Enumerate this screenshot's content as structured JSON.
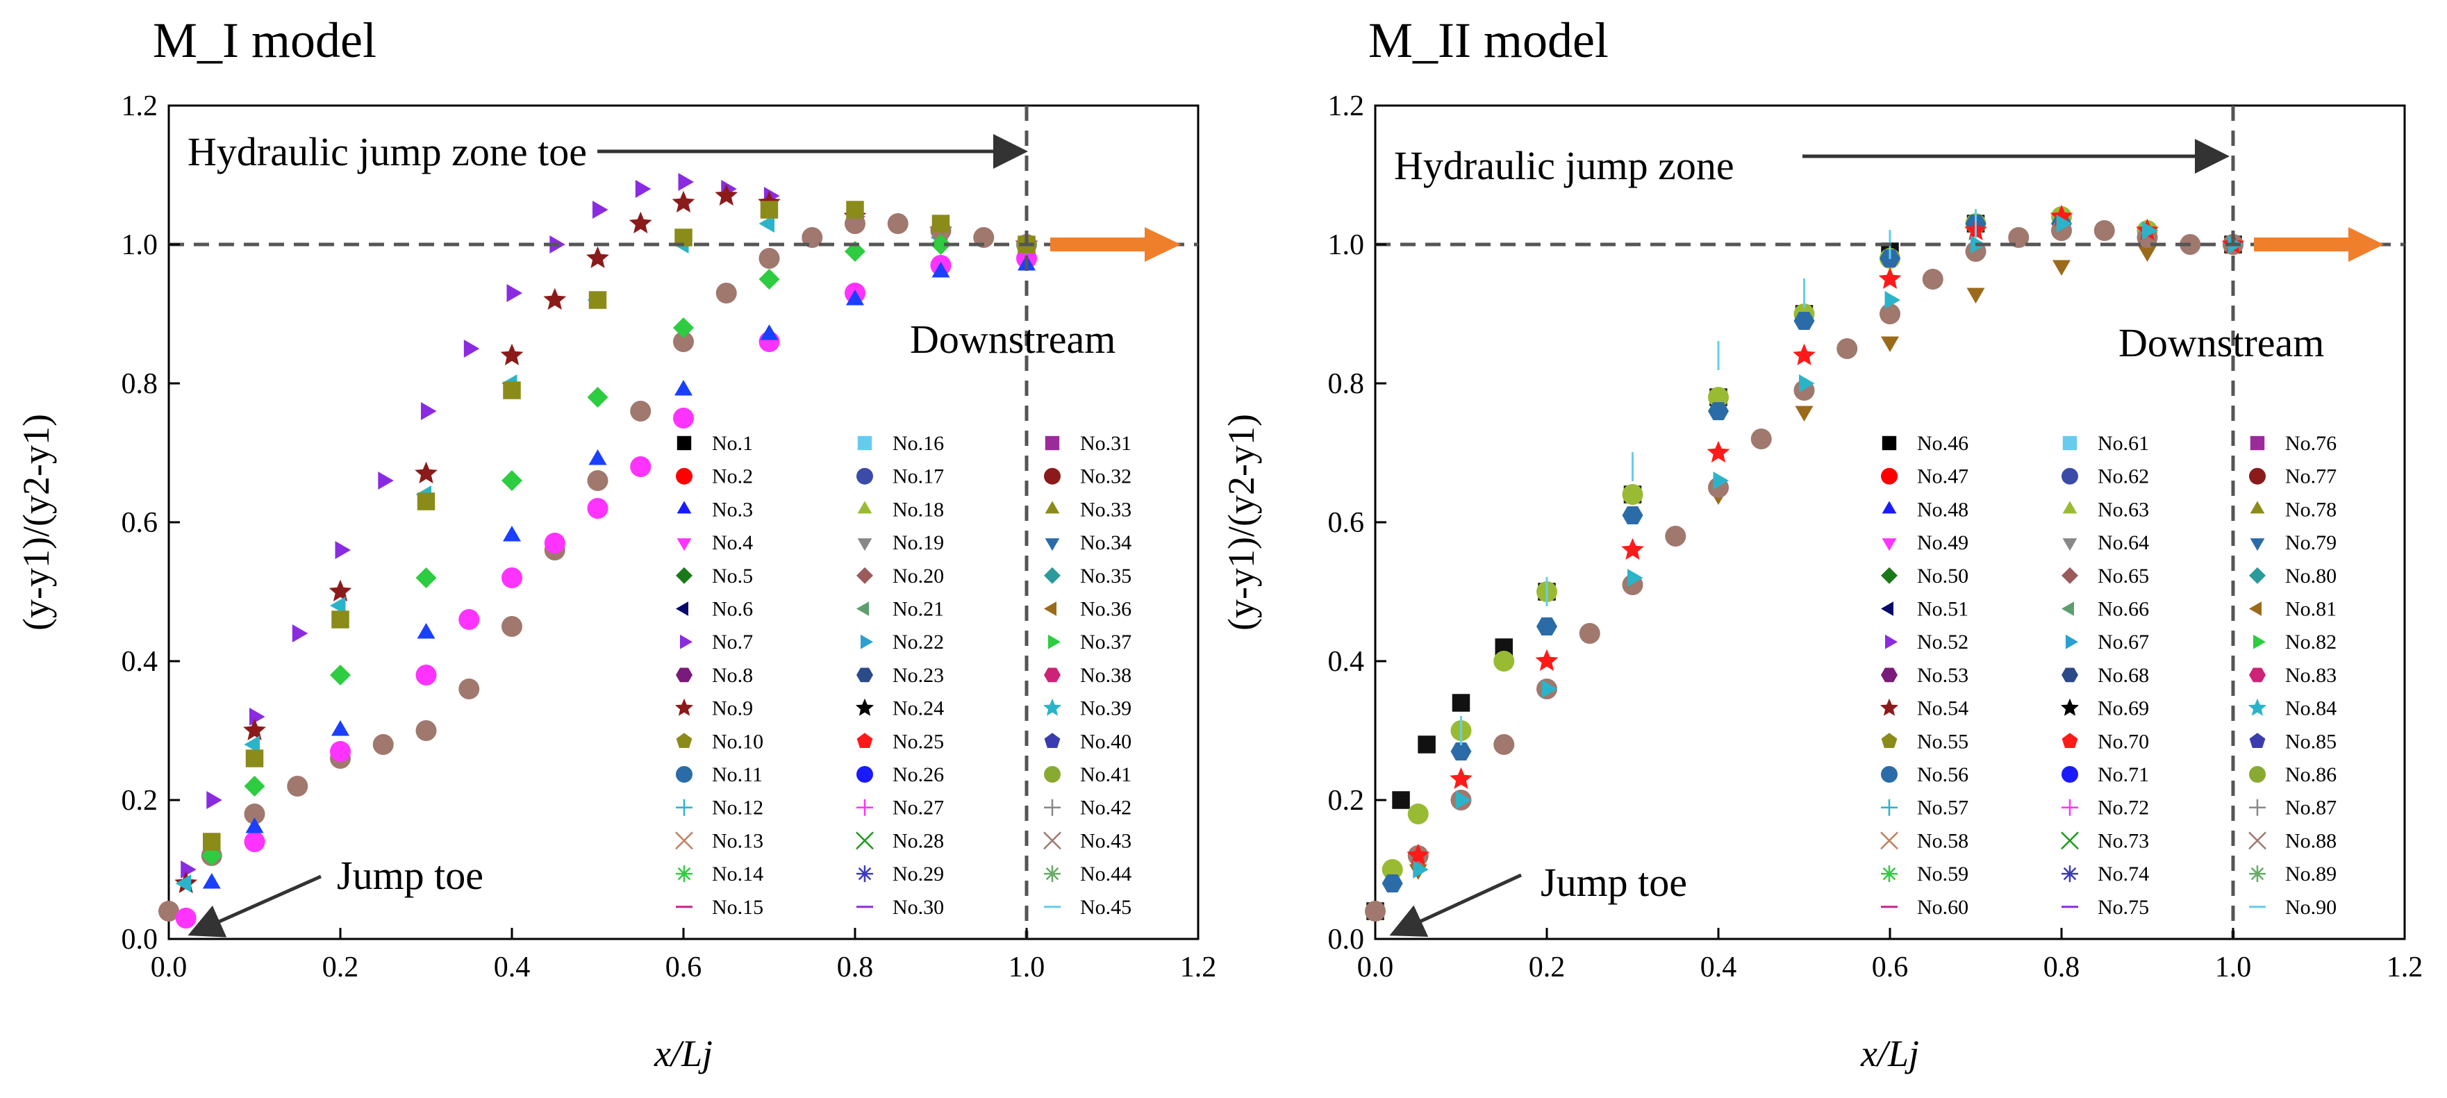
{
  "figure": {
    "colors": {
      "axis": "#000000",
      "dashed": "#555555",
      "arrow": "#333333",
      "downstream_arrow": "#f07f2c",
      "background": "#ffffff"
    }
  },
  "chart_data": [
    {
      "type": "scatter",
      "title": "M_I model",
      "xlabel": "x/Lj",
      "ylabel": "(y-y1)/(y2-y1)",
      "xlim": [
        0.0,
        1.2
      ],
      "ylim": [
        0.0,
        1.2
      ],
      "x_ticks": [
        "0.0",
        "0.2",
        "0.4",
        "0.6",
        "0.8",
        "1.0",
        "1.2"
      ],
      "y_ticks": [
        "0.0",
        "0.2",
        "0.4",
        "0.6",
        "0.8",
        "1.0",
        "1.2"
      ],
      "reference_lines": {
        "y": 1.0,
        "x": 1.0
      },
      "annotations": {
        "zone": "Hydraulic jump zone toe",
        "jump_toe": "Jump toe",
        "downstream": "Downstream"
      },
      "legend_columns": [
        [
          "No.1",
          "No.2",
          "No.3",
          "No.4",
          "No.5",
          "No.6",
          "No.7",
          "No.8",
          "No.9",
          "No.10",
          "No.11",
          "No.12",
          "No.13",
          "No.14",
          "No.15"
        ],
        [
          "No.16",
          "No.17",
          "No.18",
          "No.19",
          "No.20",
          "No.21",
          "No.22",
          "No.23",
          "No.24",
          "No.25",
          "No.26",
          "No.27",
          "No.28",
          "No.29",
          "No.30"
        ],
        [
          "No.31",
          "No.32",
          "No.33",
          "No.34",
          "No.35",
          "No.36",
          "No.37",
          "No.38",
          "No.39",
          "No.40",
          "No.41",
          "No.42",
          "No.43",
          "No.44",
          "No.45"
        ]
      ],
      "series_count": 45,
      "representative_series": [
        {
          "name": "No.7",
          "marker": "triangle-right",
          "color": "#8a2be2",
          "x": [
            0.02,
            0.05,
            0.1,
            0.15,
            0.2,
            0.25,
            0.3,
            0.35,
            0.4,
            0.45,
            0.5,
            0.55,
            0.6,
            0.65,
            0.7,
            0.8,
            0.9,
            1.0
          ],
          "y": [
            0.1,
            0.2,
            0.32,
            0.44,
            0.56,
            0.66,
            0.76,
            0.85,
            0.93,
            1.0,
            1.05,
            1.08,
            1.09,
            1.08,
            1.07,
            1.04,
            1.02,
            1.0
          ]
        },
        {
          "name": "No.9",
          "marker": "star",
          "color": "#8b1a1a",
          "x": [
            0.02,
            0.1,
            0.2,
            0.3,
            0.4,
            0.45,
            0.5,
            0.55,
            0.6,
            0.65,
            0.7,
            0.8,
            0.9,
            1.0
          ],
          "y": [
            0.08,
            0.3,
            0.5,
            0.67,
            0.84,
            0.92,
            0.98,
            1.03,
            1.06,
            1.07,
            1.06,
            1.04,
            1.02,
            1.0
          ]
        },
        {
          "name": "No.22",
          "marker": "triangle-left",
          "color": "#2bb4c9",
          "x": [
            0.02,
            0.1,
            0.2,
            0.3,
            0.4,
            0.5,
            0.6,
            0.7,
            0.8,
            0.9,
            1.0
          ],
          "y": [
            0.08,
            0.28,
            0.48,
            0.64,
            0.8,
            0.92,
            1.0,
            1.03,
            1.03,
            1.01,
            1.0
          ]
        },
        {
          "name": "No.43",
          "marker": "circle",
          "color": "#a0786e",
          "x": [
            0.0,
            0.05,
            0.1,
            0.15,
            0.2,
            0.25,
            0.3,
            0.35,
            0.4,
            0.45,
            0.5,
            0.55,
            0.6,
            0.65,
            0.7,
            0.75,
            0.8,
            0.85,
            0.9,
            0.95,
            1.0
          ],
          "y": [
            0.04,
            0.12,
            0.18,
            0.22,
            0.26,
            0.28,
            0.3,
            0.36,
            0.45,
            0.56,
            0.66,
            0.76,
            0.86,
            0.93,
            0.98,
            1.01,
            1.03,
            1.03,
            1.02,
            1.01,
            1.0
          ]
        },
        {
          "name": "No.27",
          "marker": "circle",
          "color": "#ff33ff",
          "x": [
            0.02,
            0.1,
            0.2,
            0.3,
            0.35,
            0.4,
            0.45,
            0.5,
            0.55,
            0.6,
            0.7,
            0.8,
            0.9,
            1.0
          ],
          "y": [
            0.03,
            0.14,
            0.27,
            0.38,
            0.46,
            0.52,
            0.57,
            0.62,
            0.68,
            0.75,
            0.86,
            0.93,
            0.97,
            0.98
          ]
        },
        {
          "name": "No.3",
          "marker": "triangle-up",
          "color": "#1a3fff",
          "x": [
            0.05,
            0.1,
            0.2,
            0.3,
            0.4,
            0.5,
            0.6,
            0.7,
            0.8,
            0.9,
            1.0
          ],
          "y": [
            0.08,
            0.16,
            0.3,
            0.44,
            0.58,
            0.69,
            0.79,
            0.87,
            0.92,
            0.96,
            0.97
          ]
        },
        {
          "name": "No.37",
          "marker": "diamond",
          "color": "#2ecc40",
          "x": [
            0.05,
            0.1,
            0.2,
            0.3,
            0.4,
            0.5,
            0.6,
            0.7,
            0.8,
            0.9,
            1.0
          ],
          "y": [
            0.12,
            0.22,
            0.38,
            0.52,
            0.66,
            0.78,
            0.88,
            0.95,
            0.99,
            1.0,
            1.0
          ]
        },
        {
          "name": "No.33",
          "marker": "square",
          "color": "#8b8b1a",
          "x": [
            0.05,
            0.1,
            0.2,
            0.3,
            0.4,
            0.5,
            0.6,
            0.7,
            0.8,
            0.9,
            1.0
          ],
          "y": [
            0.14,
            0.26,
            0.46,
            0.63,
            0.79,
            0.92,
            1.01,
            1.05,
            1.05,
            1.03,
            1.0
          ]
        }
      ]
    },
    {
      "type": "scatter",
      "title": "M_II model",
      "xlabel": "x/Lj",
      "ylabel": "(y-y1)/(y2-y1)",
      "xlim": [
        0.0,
        1.2
      ],
      "ylim": [
        0.0,
        1.2
      ],
      "x_ticks": [
        "0.0",
        "0.2",
        "0.4",
        "0.6",
        "0.8",
        "1.0",
        "1.2"
      ],
      "y_ticks": [
        "0.0",
        "0.2",
        "0.4",
        "0.6",
        "0.8",
        "1.0",
        "1.2"
      ],
      "reference_lines": {
        "y": 1.0,
        "x": 1.0
      },
      "annotations": {
        "zone": "Hydraulic jump zone",
        "jump_toe": "Jump toe",
        "downstream": "Downstream"
      },
      "legend_columns": [
        [
          "No.46",
          "No.47",
          "No.48",
          "No.49",
          "No.50",
          "No.51",
          "No.52",
          "No.53",
          "No.54",
          "No.55",
          "No.56",
          "No.57",
          "No.58",
          "No.59",
          "No.60"
        ],
        [
          "No.61",
          "No.62",
          "No.63",
          "No.64",
          "No.65",
          "No.66",
          "No.67",
          "No.68",
          "No.69",
          "No.70",
          "No.71",
          "No.72",
          "No.73",
          "No.74",
          "No.75"
        ],
        [
          "No.76",
          "No.77",
          "No.78",
          "No.79",
          "No.80",
          "No.81",
          "No.82",
          "No.83",
          "No.84",
          "No.85",
          "No.86",
          "No.87",
          "No.88",
          "No.89",
          "No.90"
        ]
      ],
      "series_count": 45,
      "representative_series": [
        {
          "name": "No.46",
          "marker": "square",
          "color": "#111111",
          "x": [
            0.0,
            0.03,
            0.06,
            0.1,
            0.15,
            0.2,
            0.3,
            0.4,
            0.5,
            0.6,
            0.7,
            0.8,
            0.9,
            1.0
          ],
          "y": [
            0.04,
            0.2,
            0.28,
            0.34,
            0.42,
            0.5,
            0.64,
            0.78,
            0.9,
            0.99,
            1.03,
            1.03,
            1.01,
            1.0
          ]
        },
        {
          "name": "No.63",
          "marker": "circle",
          "color": "#99bb33",
          "x": [
            0.02,
            0.05,
            0.1,
            0.15,
            0.2,
            0.3,
            0.4,
            0.5,
            0.6,
            0.7,
            0.8,
            0.9,
            1.0
          ],
          "y": [
            0.1,
            0.18,
            0.3,
            0.4,
            0.5,
            0.64,
            0.78,
            0.9,
            0.98,
            1.03,
            1.04,
            1.02,
            1.0
          ]
        },
        {
          "name": "No.79",
          "marker": "hexagon",
          "color": "#2b6ca8",
          "x": [
            0.02,
            0.1,
            0.2,
            0.3,
            0.4,
            0.5,
            0.6,
            0.7,
            0.8,
            0.9,
            1.0
          ],
          "y": [
            0.08,
            0.27,
            0.45,
            0.61,
            0.76,
            0.89,
            0.98,
            1.03,
            1.03,
            1.01,
            1.0
          ]
        },
        {
          "name": "No.81",
          "marker": "triangle-down",
          "color": "#9b6a1a",
          "x": [
            0.05,
            0.1,
            0.2,
            0.3,
            0.4,
            0.5,
            0.6,
            0.7,
            0.8,
            0.9,
            1.0
          ],
          "y": [
            0.1,
            0.2,
            0.36,
            0.51,
            0.64,
            0.76,
            0.86,
            0.93,
            0.97,
            0.99,
            1.0
          ]
        },
        {
          "name": "No.88",
          "marker": "circle",
          "color": "#a0786e",
          "x": [
            0.0,
            0.05,
            0.1,
            0.15,
            0.2,
            0.25,
            0.3,
            0.35,
            0.4,
            0.45,
            0.5,
            0.55,
            0.6,
            0.65,
            0.7,
            0.75,
            0.8,
            0.85,
            0.9,
            0.95,
            1.0
          ],
          "y": [
            0.04,
            0.12,
            0.2,
            0.28,
            0.36,
            0.44,
            0.51,
            0.58,
            0.65,
            0.72,
            0.79,
            0.85,
            0.9,
            0.95,
            0.99,
            1.01,
            1.02,
            1.02,
            1.01,
            1.0,
            1.0
          ]
        },
        {
          "name": "No.70",
          "marker": "star",
          "color": "#ff1a1a",
          "x": [
            0.05,
            0.1,
            0.2,
            0.3,
            0.4,
            0.5,
            0.6,
            0.7,
            0.8,
            0.9,
            1.0
          ],
          "y": [
            0.12,
            0.23,
            0.4,
            0.56,
            0.7,
            0.84,
            0.95,
            1.02,
            1.04,
            1.02,
            1.0
          ]
        },
        {
          "name": "No.84",
          "marker": "triangle-right",
          "color": "#2bb4c9",
          "x": [
            0.05,
            0.1,
            0.2,
            0.3,
            0.4,
            0.5,
            0.6,
            0.7,
            0.8,
            0.9,
            1.0
          ],
          "y": [
            0.1,
            0.2,
            0.36,
            0.52,
            0.66,
            0.8,
            0.92,
            1.0,
            1.03,
            1.02,
            1.0
          ]
        },
        {
          "name": "No.61",
          "marker": "vline",
          "color": "#66ccee",
          "x": [
            0.1,
            0.2,
            0.3,
            0.4,
            0.5,
            0.6,
            0.7
          ],
          "y": [
            0.3,
            0.5,
            0.68,
            0.84,
            0.93,
            1.0,
            1.03
          ]
        }
      ]
    }
  ]
}
